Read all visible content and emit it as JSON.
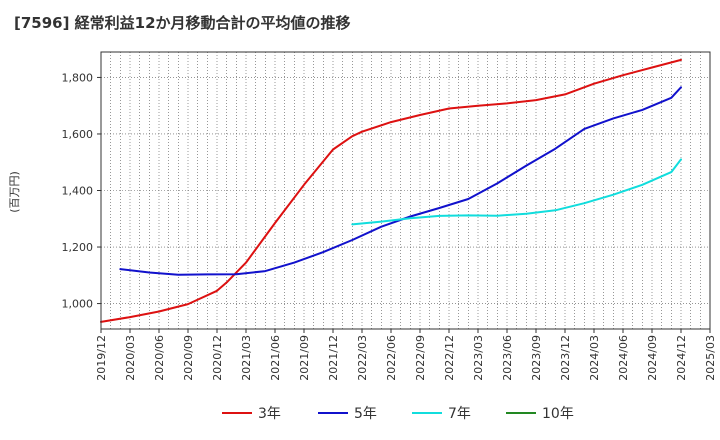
{
  "chart_data": {
    "type": "line",
    "title": "[7596]  経常利益12か月移動合計の平均値の推移",
    "ylabel": "(百万円)",
    "xlabel": "",
    "ylim": [
      910,
      1890
    ],
    "yticks": [
      1000,
      1200,
      1400,
      1600,
      1800
    ],
    "ytick_labels": [
      "1,000",
      "1,200",
      "1,400",
      "1,600",
      "1,800"
    ],
    "x_range": [
      "2019-12",
      "2025-03"
    ],
    "xtick_labels": [
      "2019/12",
      "2020/03",
      "2020/06",
      "2020/09",
      "2020/12",
      "2021/03",
      "2021/06",
      "2021/09",
      "2021/12",
      "2022/03",
      "2022/06",
      "2022/09",
      "2022/12",
      "2023/03",
      "2023/06",
      "2023/09",
      "2023/12",
      "2024/03",
      "2024/06",
      "2024/09",
      "2024/12",
      "2025/03"
    ],
    "grid": true,
    "legend_position": "bottom",
    "series": [
      {
        "name": "3年",
        "color": "#dd1111",
        "points": [
          [
            "2019-12",
            935
          ],
          [
            "2020-03",
            952
          ],
          [
            "2020-06",
            972
          ],
          [
            "2020-09",
            998
          ],
          [
            "2020-12",
            1045
          ],
          [
            "2021-01",
            1075
          ],
          [
            "2021-03",
            1145
          ],
          [
            "2021-06",
            1285
          ],
          [
            "2021-09",
            1420
          ],
          [
            "2021-12",
            1545
          ],
          [
            "2022-02",
            1592
          ],
          [
            "2022-03",
            1608
          ],
          [
            "2022-06",
            1642
          ],
          [
            "2022-09",
            1667
          ],
          [
            "2022-12",
            1690
          ],
          [
            "2023-03",
            1700
          ],
          [
            "2023-06",
            1708
          ],
          [
            "2023-09",
            1720
          ],
          [
            "2023-12",
            1740
          ],
          [
            "2024-03",
            1778
          ],
          [
            "2024-06",
            1808
          ],
          [
            "2024-09",
            1835
          ],
          [
            "2024-12",
            1862
          ]
        ]
      },
      {
        "name": "5年",
        "color": "#1111cc",
        "points": [
          [
            "2020-02",
            1122
          ],
          [
            "2020-05",
            1110
          ],
          [
            "2020-08",
            1102
          ],
          [
            "2020-11",
            1103
          ],
          [
            "2021-02",
            1104
          ],
          [
            "2021-05",
            1115
          ],
          [
            "2021-08",
            1145
          ],
          [
            "2021-11",
            1182
          ],
          [
            "2022-02",
            1225
          ],
          [
            "2022-05",
            1272
          ],
          [
            "2022-08",
            1308
          ],
          [
            "2022-11",
            1338
          ],
          [
            "2023-02",
            1370
          ],
          [
            "2023-05",
            1425
          ],
          [
            "2023-08",
            1488
          ],
          [
            "2023-11",
            1548
          ],
          [
            "2024-02",
            1618
          ],
          [
            "2024-05",
            1655
          ],
          [
            "2024-08",
            1685
          ],
          [
            "2024-11",
            1728
          ],
          [
            "2024-12",
            1765
          ]
        ]
      },
      {
        "name": "7年",
        "color": "#11dddd",
        "points": [
          [
            "2022-02",
            1280
          ],
          [
            "2022-05",
            1290
          ],
          [
            "2022-08",
            1302
          ],
          [
            "2022-11",
            1310
          ],
          [
            "2023-02",
            1312
          ],
          [
            "2023-05",
            1311
          ],
          [
            "2023-08",
            1318
          ],
          [
            "2023-11",
            1330
          ],
          [
            "2024-02",
            1355
          ],
          [
            "2024-05",
            1385
          ],
          [
            "2024-08",
            1420
          ],
          [
            "2024-11",
            1465
          ],
          [
            "2024-12",
            1510
          ]
        ]
      },
      {
        "name": "10年",
        "color": "#228822",
        "points": []
      }
    ]
  }
}
